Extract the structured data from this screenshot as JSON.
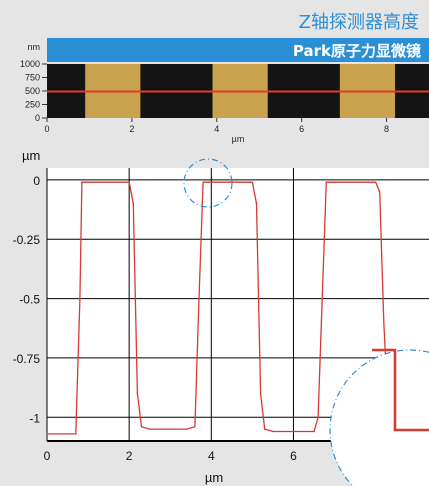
{
  "header": {
    "title": "Z轴探测器高度",
    "banner": "Park原子力显微镜",
    "colors": {
      "banner": "#2b8fd6",
      "title": "#2e8fd6",
      "trace": "#d63a33",
      "line": "#e23a2d"
    }
  },
  "chart_data": [
    {
      "type": "heatmap",
      "ylabel": "nm",
      "xlabel": "µm",
      "ylim": [
        0,
        1000
      ],
      "xlim": [
        0,
        9
      ],
      "y_ticks": [
        "0",
        "250",
        "500",
        "750",
        "1000"
      ],
      "x_ticks": [
        "0",
        "2",
        "4",
        "6",
        "8"
      ],
      "stripes": [
        [
          0.9,
          2.2
        ],
        [
          3.9,
          5.2
        ],
        [
          6.9,
          8.2
        ]
      ],
      "profile_line_nm": 490,
      "colormap": [
        "#141414",
        "#c8a24c"
      ]
    },
    {
      "type": "line",
      "ylabel": "µm",
      "xlabel": "µm",
      "xlim": [
        0,
        9.3
      ],
      "ylim": [
        -1.1,
        0.05
      ],
      "y_ticks": [
        "0",
        "-0.25",
        "-0.5",
        "-0.75",
        "-1"
      ],
      "x_ticks": [
        "0",
        "2",
        "4",
        "6"
      ],
      "grid": true,
      "x": [
        0,
        0.7,
        0.8,
        0.85,
        1.0,
        1.5,
        2.0,
        2.1,
        2.2,
        2.3,
        2.5,
        2.8,
        3.0,
        3.4,
        3.6,
        3.7,
        3.8,
        4.0,
        4.5,
        5.0,
        5.1,
        5.2,
        5.3,
        5.5,
        6.0,
        6.5,
        6.6,
        6.7,
        6.8,
        7.0,
        7.5,
        8.0,
        8.1,
        8.2,
        8.3,
        8.6,
        9.3
      ],
      "y": [
        -1.07,
        -1.07,
        -0.5,
        -0.01,
        -0.01,
        -0.01,
        -0.01,
        -0.1,
        -0.9,
        -1.04,
        -1.05,
        -1.05,
        -1.05,
        -1.05,
        -1.04,
        -0.5,
        -0.01,
        -0.01,
        -0.01,
        -0.01,
        -0.1,
        -0.9,
        -1.05,
        -1.06,
        -1.06,
        -1.06,
        -1.0,
        -0.5,
        -0.01,
        -0.01,
        -0.01,
        -0.01,
        -0.05,
        -0.6,
        -0.95,
        -1.06,
        -1.06
      ]
    }
  ]
}
